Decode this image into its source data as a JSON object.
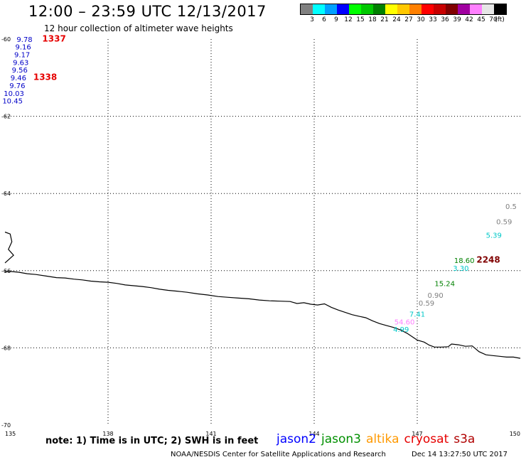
{
  "header": {
    "title": "12:00 – 23:59 UTC 12/13/2017",
    "subtitle": "12 hour collection of altimeter wave heights"
  },
  "legend": {
    "colors": [
      "#808080",
      "#00ffff",
      "#00a0ff",
      "#0000ff",
      "#00ff00",
      "#00c800",
      "#008000",
      "#ffff00",
      "#ffc800",
      "#ff8000",
      "#ff0000",
      "#c80000",
      "#800000",
      "#a000a0",
      "#ff80ff",
      "#e6e6e6",
      "#000000"
    ],
    "labels": [
      "3",
      "6",
      "9",
      "12",
      "15",
      "18",
      "21",
      "24",
      "27",
      "30",
      "33",
      "36",
      "39",
      "42",
      "45",
      "70",
      "(ft)"
    ]
  },
  "map": {
    "lon_range": [
      135,
      150
    ],
    "lat_range": [
      -70,
      -60
    ],
    "lon_ticks": [
      "135",
      "138",
      "141",
      "144",
      "147",
      "150"
    ],
    "lat_ticks": [
      "-60",
      "-62",
      "-64",
      "-66",
      "-68",
      "-70"
    ],
    "coastline": [
      [
        135.0,
        -66.03
      ],
      [
        135.15,
        -66.02
      ],
      [
        135.4,
        -66.04
      ],
      [
        135.65,
        -66.08
      ],
      [
        135.9,
        -66.1
      ],
      [
        136.2,
        -66.14
      ],
      [
        136.5,
        -66.18
      ],
      [
        136.75,
        -66.19
      ],
      [
        137.0,
        -66.22
      ],
      [
        137.25,
        -66.24
      ],
      [
        137.5,
        -66.27
      ],
      [
        137.75,
        -66.29
      ],
      [
        138.0,
        -66.3
      ],
      [
        138.25,
        -66.33
      ],
      [
        138.5,
        -66.37
      ],
      [
        138.75,
        -66.39
      ],
      [
        139.0,
        -66.41
      ],
      [
        139.25,
        -66.44
      ],
      [
        139.5,
        -66.48
      ],
      [
        139.75,
        -66.51
      ],
      [
        140.0,
        -66.53
      ],
      [
        140.3,
        -66.56
      ],
      [
        140.6,
        -66.6
      ],
      [
        140.9,
        -66.63
      ],
      [
        141.2,
        -66.67
      ],
      [
        141.5,
        -66.69
      ],
      [
        141.8,
        -66.71
      ],
      [
        142.1,
        -66.73
      ],
      [
        142.4,
        -66.76
      ],
      [
        142.7,
        -66.78
      ],
      [
        143.0,
        -66.79
      ],
      [
        143.3,
        -66.8
      ],
      [
        143.5,
        -66.85
      ],
      [
        143.7,
        -66.83
      ],
      [
        143.9,
        -66.87
      ],
      [
        144.1,
        -66.89
      ],
      [
        144.3,
        -66.86
      ],
      [
        144.5,
        -66.95
      ],
      [
        144.7,
        -67.02
      ],
      [
        144.9,
        -67.08
      ],
      [
        145.1,
        -67.14
      ],
      [
        145.3,
        -67.18
      ],
      [
        145.5,
        -67.22
      ],
      [
        145.7,
        -67.3
      ],
      [
        145.9,
        -67.37
      ],
      [
        146.1,
        -67.42
      ],
      [
        146.3,
        -67.47
      ],
      [
        146.5,
        -67.53
      ],
      [
        146.7,
        -67.62
      ],
      [
        146.9,
        -67.74
      ],
      [
        147.0,
        -67.8
      ],
      [
        147.2,
        -67.85
      ],
      [
        147.35,
        -67.93
      ],
      [
        147.5,
        -67.98
      ],
      [
        147.7,
        -67.98
      ],
      [
        147.9,
        -67.97
      ],
      [
        148.0,
        -67.9
      ],
      [
        148.2,
        -67.92
      ],
      [
        148.4,
        -67.96
      ],
      [
        148.6,
        -67.95
      ],
      [
        148.8,
        -68.1
      ],
      [
        149.0,
        -68.18
      ],
      [
        149.2,
        -68.2
      ],
      [
        149.4,
        -68.22
      ],
      [
        149.6,
        -68.24
      ],
      [
        149.8,
        -68.24
      ],
      [
        150.0,
        -68.27
      ]
    ],
    "inland_coast": [
      [
        135.0,
        -65.0
      ],
      [
        135.15,
        -65.05
      ],
      [
        135.2,
        -65.25
      ],
      [
        135.1,
        -65.45
      ],
      [
        135.25,
        -65.6
      ],
      [
        135.0,
        -65.8
      ]
    ],
    "observations": [
      {
        "text": "9.78",
        "lon": 135.57,
        "lat": -60.07,
        "color": "#0000c8"
      },
      {
        "text": "9.16",
        "lon": 135.53,
        "lat": -60.27,
        "color": "#0000c8"
      },
      {
        "text": "9.17",
        "lon": 135.5,
        "lat": -60.47,
        "color": "#0000c8"
      },
      {
        "text": "9.63",
        "lon": 135.46,
        "lat": -60.67,
        "color": "#0000c8"
      },
      {
        "text": "9.56",
        "lon": 135.43,
        "lat": -60.87,
        "color": "#0000c8"
      },
      {
        "text": "9.46",
        "lon": 135.39,
        "lat": -61.07,
        "color": "#0000c8"
      },
      {
        "text": "9.76",
        "lon": 135.36,
        "lat": -61.27,
        "color": "#0000c8"
      },
      {
        "text": "10.03",
        "lon": 135.26,
        "lat": -61.47,
        "color": "#0000c8"
      },
      {
        "text": "10.45",
        "lon": 135.22,
        "lat": -61.67,
        "color": "#0000c8"
      },
      {
        "text": "0.5",
        "lon": 149.73,
        "lat": -64.4,
        "color": "#808080"
      },
      {
        "text": "0.59",
        "lon": 149.53,
        "lat": -64.8,
        "color": "#808080"
      },
      {
        "text": "5.39",
        "lon": 149.23,
        "lat": -65.15,
        "color": "#00c8c8"
      },
      {
        "text": "18.60",
        "lon": 148.37,
        "lat": -65.8,
        "color": "#008000"
      },
      {
        "text": "3.30",
        "lon": 148.27,
        "lat": -66.0,
        "color": "#00c8c8"
      },
      {
        "text": "15.24",
        "lon": 147.8,
        "lat": -66.4,
        "color": "#008000"
      },
      {
        "text": "0.90",
        "lon": 147.53,
        "lat": -66.7,
        "color": "#808080"
      },
      {
        "text": "0.59",
        "lon": 147.27,
        "lat": -66.91,
        "color": "#808080"
      },
      {
        "text": "7.41",
        "lon": 147.0,
        "lat": -67.19,
        "color": "#00c8c8"
      },
      {
        "text": "54.60",
        "lon": 146.63,
        "lat": -67.39,
        "color": "#ff80ff"
      },
      {
        "text": "4.99",
        "lon": 146.53,
        "lat": -67.59,
        "color": "#00c8c8"
      }
    ],
    "pass_times": [
      {
        "text": "1337",
        "lon": 136.43,
        "lat": -60.06,
        "color": "#e60000"
      },
      {
        "text": "1338",
        "lon": 136.17,
        "lat": -61.06,
        "color": "#e60000"
      },
      {
        "text": "2248",
        "lon": 149.07,
        "lat": -65.79,
        "color": "#800000"
      }
    ]
  },
  "footer": {
    "note": "note:  1) Time is in UTC;  2) SWH is in feet",
    "satellites": [
      {
        "name": "jason2",
        "color": "#0000ff"
      },
      {
        "name": "jason3",
        "color": "#009000"
      },
      {
        "name": "altika",
        "color": "#ff9900"
      },
      {
        "name": "cryosat",
        "color": "#e60000"
      },
      {
        "name": "s3a",
        "color": "#b00000"
      }
    ],
    "credit": "NOAA/NESDIS Center for Satellite Applications and Research",
    "timestamp": "Dec 14 13:27:50 UTC 2017"
  }
}
